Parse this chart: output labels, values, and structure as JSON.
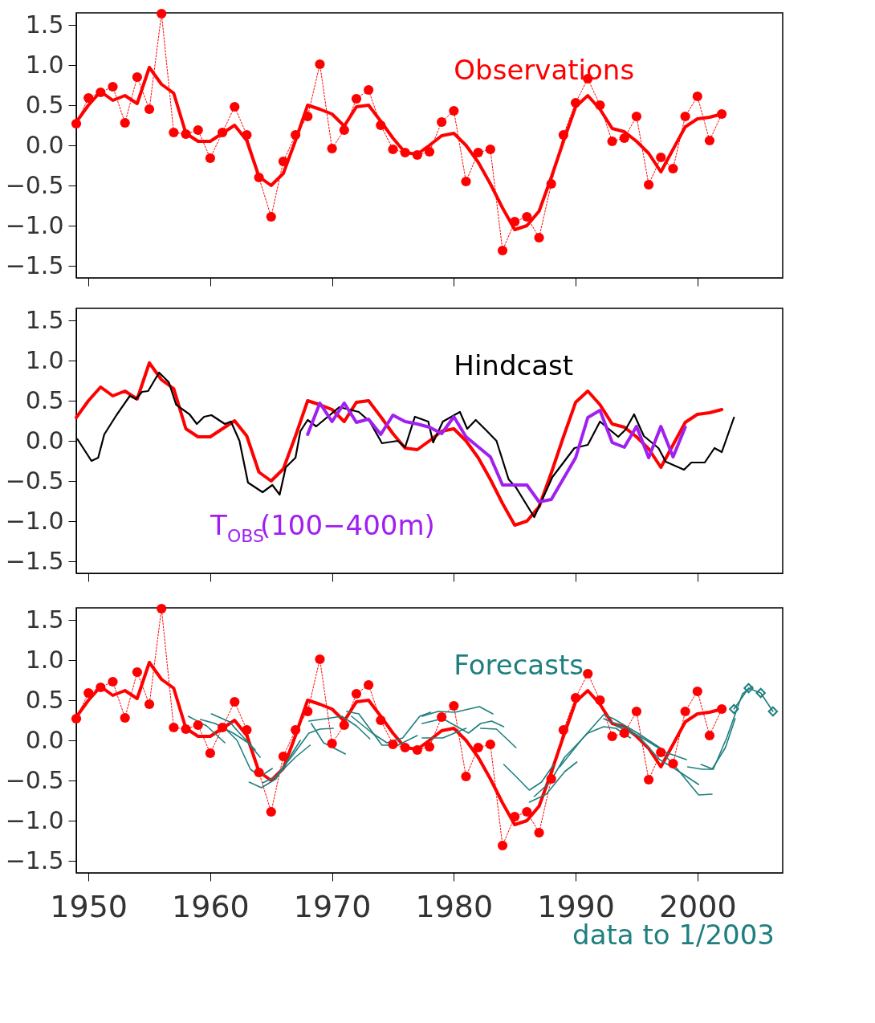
{
  "chart_data": [
    {
      "type": "line",
      "x": [
        1949,
        1950,
        1951,
        1952,
        1953,
        1954,
        1955,
        1956,
        1957,
        1958,
        1959,
        1960,
        1961,
        1962,
        1963,
        1964,
        1965,
        1966,
        1967,
        1968,
        1969,
        1970,
        1971,
        1972,
        1973,
        1974,
        1975,
        1976,
        1977,
        1978,
        1979,
        1980,
        1981,
        1982,
        1983,
        1984,
        1985,
        1986,
        1987,
        1988,
        1989,
        1990,
        1991,
        1992,
        1993,
        1994,
        1995,
        1996,
        1997,
        1998,
        1999,
        2000,
        2001,
        2002
      ],
      "xlim": [
        1949,
        2007
      ],
      "xticks": [
        1950,
        1960,
        1970,
        1980,
        1990,
        2000
      ],
      "ylim": [
        -1.65,
        1.65
      ],
      "yticks": [
        {
          "value": -1.5,
          "label": "−1.5"
        },
        {
          "value": -1,
          "label": "−1.0"
        },
        {
          "value": -0.5,
          "label": "−0.5"
        },
        {
          "value": 0,
          "label": "0.0"
        },
        {
          "value": 0.5,
          "label": "0.5"
        },
        {
          "value": 1,
          "label": "1.0"
        },
        {
          "value": 1.5,
          "label": "1.5"
        }
      ],
      "tick_labels": "y",
      "series": [
        {
          "name": "Observations",
          "color": "#ff0000",
          "marker": "circle",
          "line_style": "dotted",
          "values": [
            0.27,
            0.59,
            0.66,
            0.73,
            0.28,
            0.85,
            0.45,
            1.64,
            0.16,
            0.14,
            0.19,
            -0.16,
            0.16,
            0.48,
            0.13,
            -0.4,
            -0.89,
            -0.2,
            0.13,
            0.36,
            1.01,
            -0.04,
            0.19,
            0.58,
            0.69,
            0.25,
            -0.05,
            -0.09,
            -0.12,
            -0.08,
            0.29,
            0.43,
            -0.45,
            -0.09,
            -0.05,
            -1.31,
            -0.95,
            -0.89,
            -1.15,
            -0.48,
            0.13,
            0.53,
            0.83,
            0.5,
            0.05,
            0.09,
            0.36,
            -0.49,
            -0.15,
            -0.29,
            0.36,
            0.61,
            0.06,
            0.39
          ]
        },
        {
          "color": "#ff0000",
          "values": [
            0.29,
            0.5,
            0.67,
            0.56,
            0.62,
            0.52,
            0.97,
            0.76,
            0.65,
            0.15,
            0.05,
            0.05,
            0.15,
            0.25,
            0.06,
            -0.39,
            -0.5,
            -0.35,
            0.06,
            0.5,
            0.45,
            0.39,
            0.24,
            0.48,
            0.5,
            0.3,
            0.09,
            -0.09,
            -0.11,
            0.0,
            0.12,
            0.15,
            0.0,
            -0.21,
            -0.48,
            -0.78,
            -1.05,
            -1.0,
            -0.82,
            -0.4,
            0.05,
            0.48,
            0.62,
            0.45,
            0.21,
            0.17,
            0.05,
            -0.1,
            -0.33,
            -0.05,
            0.23,
            0.33,
            0.35,
            0.39
          ]
        }
      ]
    },
    {
      "type": "line",
      "x": [
        1949,
        1950,
        1951,
        1952,
        1953,
        1954,
        1955,
        1956,
        1957,
        1958,
        1959,
        1960,
        1961,
        1962,
        1963,
        1964,
        1965,
        1966,
        1967,
        1968,
        1969,
        1970,
        1971,
        1972,
        1973,
        1974,
        1975,
        1976,
        1977,
        1978,
        1979,
        1980,
        1981,
        1982,
        1983,
        1984,
        1985,
        1986,
        1987,
        1988,
        1989,
        1990,
        1991,
        1992,
        1993,
        1994,
        1995,
        1996,
        1997,
        1998,
        1999,
        2000,
        2001,
        2002
      ],
      "xlim": [
        1949,
        2007
      ],
      "xticks": [
        1950,
        1960,
        1970,
        1980,
        1990,
        2000
      ],
      "ylim": [
        -1.65,
        1.65
      ],
      "yticks": [
        {
          "value": -1.5,
          "label": "−1.5"
        },
        {
          "value": -1,
          "label": "−1.0"
        },
        {
          "value": -0.5,
          "label": "−0.5"
        },
        {
          "value": 0,
          "label": "0.0"
        },
        {
          "value": 0.5,
          "label": "0.5"
        },
        {
          "value": 1,
          "label": "1.0"
        },
        {
          "value": 1.5,
          "label": "1.5"
        }
      ],
      "tick_labels": "y",
      "series": [
        {
          "color": "#ff0000",
          "values": [
            0.29,
            0.5,
            0.67,
            0.56,
            0.62,
            0.52,
            0.97,
            0.76,
            0.65,
            0.15,
            0.05,
            0.05,
            0.15,
            0.25,
            0.06,
            -0.39,
            -0.5,
            -0.35,
            0.06,
            0.5,
            0.45,
            0.39,
            0.24,
            0.48,
            0.5,
            0.3,
            0.09,
            -0.09,
            -0.11,
            0.0,
            0.12,
            0.15,
            0.0,
            -0.21,
            -0.48,
            -0.78,
            -1.05,
            -1.0,
            -0.82,
            -0.4,
            0.05,
            0.48,
            0.62,
            0.45,
            0.21,
            0.17,
            0.05,
            -0.1,
            -0.33,
            -0.05,
            0.23,
            0.33,
            0.35,
            0.39
          ]
        },
        {
          "name": "Hindcast",
          "color": "#000000",
          "x": [
            1949.1,
            1950.25,
            1950.8,
            1951.3,
            1952.3,
            1953.4,
            1953.9,
            1954.4,
            1954.9,
            1955.8,
            1956.6,
            1957.2,
            1958.3,
            1958.9,
            1959.5,
            1960.1,
            1961.2,
            1961.7,
            1962.4,
            1963.1,
            1964.3,
            1965.1,
            1965.7,
            1966.2,
            1967.0,
            1967.4,
            1968.0,
            1968.7,
            1970.6,
            1972.2,
            1973.1,
            1974.1,
            1975.4,
            1976.0,
            1976.8,
            1977.9,
            1978.3,
            1979.1,
            1980.5,
            1981.1,
            1981.8,
            1982.6,
            1983.5,
            1984.5,
            1985.1,
            1986.6,
            1988.1,
            1989.9,
            1991.0,
            1992.0,
            1993.5,
            1994.1,
            1994.8,
            1995.6,
            1996.8,
            1997.4,
            1998.9,
            1999.5,
            2000.6,
            2001.4,
            2002.0,
            2003.0
          ],
          "values": [
            0.02,
            -0.25,
            -0.21,
            0.08,
            0.32,
            0.56,
            0.52,
            0.61,
            0.62,
            0.85,
            0.73,
            0.45,
            0.33,
            0.21,
            0.3,
            0.32,
            0.21,
            0.24,
            0.0,
            -0.52,
            -0.64,
            -0.55,
            -0.67,
            -0.33,
            -0.21,
            0.12,
            0.26,
            0.18,
            0.42,
            0.36,
            0.24,
            -0.03,
            0.0,
            -0.08,
            0.3,
            0.24,
            -0.02,
            0.24,
            0.36,
            0.15,
            0.26,
            0.14,
            0.0,
            -0.48,
            -0.58,
            -0.95,
            -0.45,
            -0.09,
            -0.05,
            0.24,
            0.05,
            0.14,
            0.33,
            0.06,
            -0.09,
            -0.26,
            -0.36,
            -0.27,
            -0.27,
            -0.09,
            -0.14,
            0.29
          ]
        },
        {
          "name": "T$_{OBS}$(100−400m)",
          "color": "#a020f0",
          "x": [
            1968,
            1969,
            1970,
            1971,
            1972,
            1973,
            1974,
            1975,
            1976,
            1977,
            1978,
            1979,
            1980,
            1981,
            1983,
            1984,
            1986,
            1987,
            1988,
            1990,
            1991,
            1992,
            1993,
            1994,
            1995,
            1996,
            1997,
            1998,
            1999
          ],
          "values": [
            0.08,
            0.47,
            0.24,
            0.47,
            0.23,
            0.27,
            0.08,
            0.32,
            0.24,
            0.21,
            0.17,
            0.09,
            0.3,
            0.05,
            -0.2,
            -0.55,
            -0.55,
            -0.76,
            -0.73,
            -0.21,
            0.29,
            0.38,
            -0.02,
            -0.08,
            0.18,
            -0.21,
            0.18,
            -0.2,
            0.17
          ]
        }
      ]
    },
    {
      "type": "line",
      "x": [
        1949,
        1950,
        1951,
        1952,
        1953,
        1954,
        1955,
        1956,
        1957,
        1958,
        1959,
        1960,
        1961,
        1962,
        1963,
        1964,
        1965,
        1966,
        1967,
        1968,
        1969,
        1970,
        1971,
        1972,
        1973,
        1974,
        1975,
        1976,
        1977,
        1978,
        1979,
        1980,
        1981,
        1982,
        1983,
        1984,
        1985,
        1986,
        1987,
        1988,
        1989,
        1990,
        1991,
        1992,
        1993,
        1994,
        1995,
        1996,
        1997,
        1998,
        1999,
        2000,
        2001,
        2002
      ],
      "xlim": [
        1949,
        2007
      ],
      "xticks": [
        1950,
        1960,
        1970,
        1980,
        1990,
        2000
      ],
      "ylim": [
        -1.65,
        1.65
      ],
      "yticks": [
        {
          "value": -1.5,
          "label": "−1.5"
        },
        {
          "value": -1,
          "label": "−1.0"
        },
        {
          "value": -0.5,
          "label": "−0.5"
        },
        {
          "value": 0,
          "label": "0.0"
        },
        {
          "value": 0.5,
          "label": "0.5"
        },
        {
          "value": 1,
          "label": "1.0"
        },
        {
          "value": 1.5,
          "label": "1.5"
        }
      ],
      "annotations": [
        "data to 1/2003"
      ],
      "series": [
        {
          "color": "#ff0000",
          "marker": "circle",
          "line_style": "dotted",
          "values": [
            0.27,
            0.59,
            0.66,
            0.73,
            0.28,
            0.85,
            0.45,
            1.64,
            0.16,
            0.14,
            0.19,
            -0.16,
            0.16,
            0.48,
            0.13,
            -0.4,
            -0.89,
            -0.2,
            0.13,
            0.36,
            1.01,
            -0.04,
            0.19,
            0.58,
            0.69,
            0.25,
            -0.05,
            -0.09,
            -0.12,
            -0.08,
            0.29,
            0.43,
            -0.45,
            -0.09,
            -0.05,
            -1.31,
            -0.95,
            -0.89,
            -1.15,
            -0.48,
            0.13,
            0.53,
            0.83,
            0.5,
            0.05,
            0.09,
            0.36,
            -0.49,
            -0.15,
            -0.29,
            0.36,
            0.61,
            0.06,
            0.39
          ]
        },
        {
          "color": "#ff0000",
          "values": [
            0.29,
            0.5,
            0.67,
            0.56,
            0.62,
            0.52,
            0.97,
            0.76,
            0.65,
            0.15,
            0.05,
            0.05,
            0.15,
            0.25,
            0.06,
            -0.39,
            -0.5,
            -0.35,
            0.06,
            0.5,
            0.45,
            0.39,
            0.24,
            0.48,
            0.5,
            0.3,
            0.09,
            -0.09,
            -0.11,
            0.0,
            0.12,
            0.15,
            0.0,
            -0.21,
            -0.48,
            -0.78,
            -1.05,
            -1.0,
            -0.82,
            -0.4,
            0.05,
            0.48,
            0.62,
            0.45,
            0.21,
            0.17,
            0.05,
            -0.1,
            -0.33,
            -0.05,
            0.23,
            0.33,
            0.35,
            0.39
          ]
        },
        {
          "name": "Forecasts",
          "color": "#1f7f7f",
          "x": [
            1958.2,
            1959.7,
            1961.2
          ],
          "values": [
            0.3,
            0.18,
            -0.03
          ]
        },
        {
          "color": "#1f7f7f",
          "x": [
            1959.2,
            1960.4,
            1962.0,
            1963.1,
            1964.1
          ],
          "values": [
            0.26,
            0.21,
            0.08,
            -0.03,
            -0.21
          ]
        },
        {
          "color": "#1f7f7f",
          "x": [
            1960.1,
            1961.6,
            1962.4,
            1963.7
          ],
          "values": [
            0.33,
            0.23,
            0.09,
            -0.12
          ]
        },
        {
          "color": "#1f7f7f",
          "x": [
            1961.2,
            1962.2,
            1963.3,
            1964.1,
            1965.1
          ],
          "values": [
            0.15,
            0.0,
            -0.36,
            -0.45,
            -0.35
          ]
        },
        {
          "color": "#1f7f7f",
          "x": [
            1963.2,
            1964.2,
            1965.4,
            1966.4,
            1967.4
          ],
          "values": [
            -0.52,
            -0.59,
            -0.48,
            -0.24,
            0.0
          ]
        },
        {
          "color": "#1f7f7f",
          "x": [
            1964.3,
            1965.4,
            1966.8,
            1968.1,
            1969.0,
            1970.1
          ],
          "values": [
            -0.53,
            -0.45,
            -0.18,
            0.09,
            0.14,
            0.15
          ]
        },
        {
          "color": "#1f7f7f",
          "x": [
            1965.8,
            1967.0,
            1968.2
          ],
          "values": [
            -0.39,
            -0.21,
            -0.06
          ]
        },
        {
          "color": "#1f7f7f",
          "x": [
            1968.1,
            1969.5,
            1970.8,
            1972.0,
            1973.1
          ],
          "values": [
            0.24,
            0.27,
            0.3,
            0.18,
            0.02
          ]
        },
        {
          "color": "#1f7f7f",
          "x": [
            1968.3,
            1969.3,
            1971.1
          ],
          "values": [
            0.21,
            -0.03,
            -0.17
          ]
        },
        {
          "color": "#1f7f7f",
          "x": [
            1971.2,
            1972.2,
            1974.1,
            1975.4,
            1977.0
          ],
          "values": [
            0.36,
            0.33,
            -0.06,
            -0.06,
            0.06
          ]
        },
        {
          "color": "#1f7f7f",
          "x": [
            1971.6,
            1973.3,
            1974.5,
            1975.8,
            1977.2,
            1978.1
          ],
          "values": [
            0.3,
            0.09,
            -0.03,
            0.03,
            0.3,
            0.35
          ]
        },
        {
          "color": "#1f7f7f",
          "x": [
            1977.4,
            1978.7,
            1980.1,
            1982.1,
            1983.2
          ],
          "values": [
            0.3,
            0.36,
            0.35,
            0.42,
            0.33
          ]
        },
        {
          "color": "#1f7f7f",
          "x": [
            1977.4,
            1979.1,
            1981.2,
            1982.2,
            1983.1,
            1984.1
          ],
          "values": [
            0.21,
            0.27,
            0.09,
            0.21,
            0.24,
            0.17
          ]
        },
        {
          "color": "#1f7f7f",
          "x": [
            1977.4,
            1979.1,
            1981.0
          ],
          "values": [
            0.03,
            0.03,
            0.15
          ]
        },
        {
          "color": "#1f7f7f",
          "x": [
            1982.2,
            1983.5,
            1985.1
          ],
          "values": [
            0.15,
            0.14,
            -0.09
          ]
        },
        {
          "color": "#1f7f7f",
          "x": [
            1984.1,
            1985.1,
            1986.2,
            1987.2,
            1988.2
          ],
          "values": [
            -0.3,
            -0.45,
            -0.62,
            -0.52,
            -0.3
          ]
        },
        {
          "color": "#1f7f7f",
          "x": [
            1986.2,
            1987.6,
            1989.1,
            1990.1
          ],
          "values": [
            -0.77,
            -0.67,
            -0.39,
            -0.27
          ]
        },
        {
          "color": "#1f7f7f",
          "x": [
            1986.6,
            1987.9,
            1989.1,
            1991.0,
            1992.3,
            1993.3,
            1994.5
          ],
          "values": [
            -0.7,
            -0.52,
            -0.21,
            0.09,
            0.17,
            0.15,
            0.03
          ]
        },
        {
          "color": "#1f7f7f",
          "x": [
            1988.7,
            1990.6,
            1992.3,
            1993.1,
            1995.1,
            1997.2
          ],
          "values": [
            -0.33,
            0.03,
            0.32,
            0.27,
            0.09,
            -0.12
          ]
        },
        {
          "color": "#1f7f7f",
          "x": [
            1992.3,
            1994.1,
            1995.8,
            1997.4,
            1999.1
          ],
          "values": [
            0.27,
            0.15,
            0.0,
            -0.15,
            -0.24
          ]
        },
        {
          "color": "#1f7f7f",
          "x": [
            1993.3,
            1995.1,
            1996.9,
            1998.2,
            2000.1
          ],
          "values": [
            0.18,
            0.06,
            -0.24,
            -0.36,
            -0.55
          ]
        },
        {
          "color": "#1f7f7f",
          "x": [
            1996.9,
            1998.2,
            2000.1,
            2001.2
          ],
          "values": [
            -0.12,
            -0.33,
            -0.68,
            -0.67
          ]
        },
        {
          "color": "#1f7f7f",
          "x": [
            1999.2,
            2000.4,
            2001.2,
            2002.3,
            2003.1
          ],
          "values": [
            -0.33,
            -0.36,
            -0.36,
            -0.09,
            0.27
          ]
        },
        {
          "color": "#1f7f7f",
          "x": [
            2000.3,
            2001.3,
            2002.4,
            2003.7,
            2004.5
          ],
          "values": [
            -0.3,
            -0.36,
            0.03,
            0.58,
            0.67
          ]
        },
        {
          "color": "#1f7f7f",
          "marker": "diamond",
          "x": [
            2003.0,
            2004.2,
            2005.2,
            2006.2
          ],
          "values": [
            0.39,
            0.65,
            0.59,
            0.36
          ]
        }
      ]
    }
  ]
}
